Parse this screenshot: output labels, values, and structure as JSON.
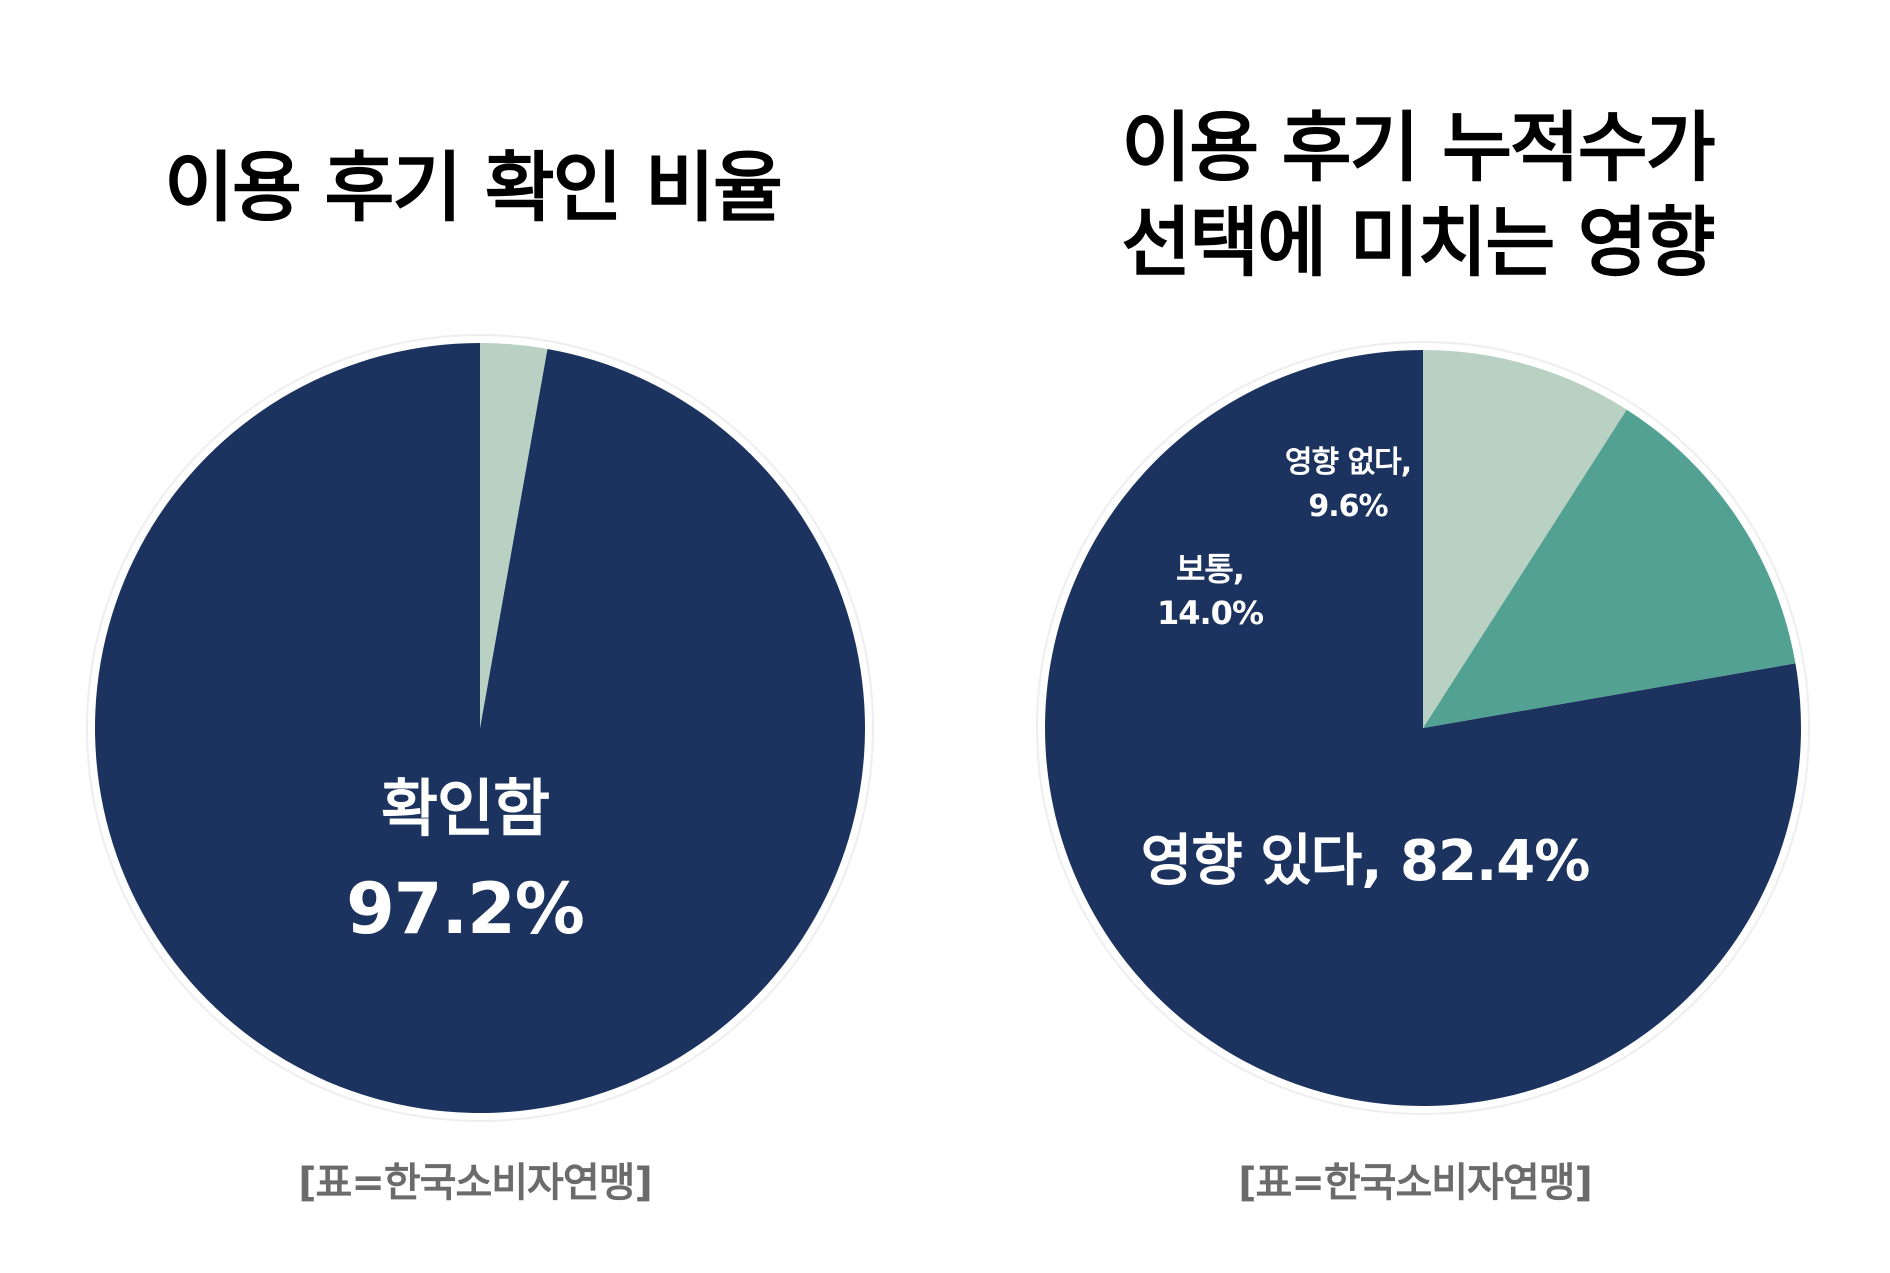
{
  "charts": [
    {
      "title_lines": [
        "이용 후기 확인 비율"
      ],
      "source": "[표=한국소비자연맹]"
    },
    {
      "title_lines": [
        "이용 후기 누적수가",
        "선택에 미치는 영향"
      ],
      "source": "[표=한국소비자연맹]"
    }
  ],
  "chart_data": [
    {
      "type": "pie",
      "title": "이용 후기 확인 비율",
      "slices": [
        {
          "label": "확인함",
          "value_label": "97.2%",
          "value": 97.2,
          "color": "#1b335e"
        },
        {
          "label": "",
          "value_label": "",
          "value": 2.8,
          "color": "#b8d1c2"
        }
      ]
    },
    {
      "type": "pie",
      "title": "이용 후기 누적수가 선택에 미치는 영향",
      "slices": [
        {
          "label": "영향 있다,",
          "value_label": "82.4%",
          "value": 82.4,
          "color": "#1b335e"
        },
        {
          "label": "보통,",
          "value_label": "14.0%",
          "value": 14.0,
          "color": "#52a192"
        },
        {
          "label": "영향 없다,",
          "value_label": "9.6%",
          "value": 9.6,
          "color": "#b8d1c2"
        }
      ]
    }
  ]
}
